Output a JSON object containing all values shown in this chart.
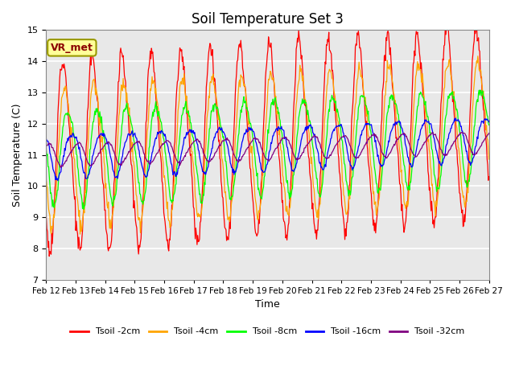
{
  "title": "Soil Temperature Set 3",
  "xlabel": "Time",
  "ylabel": "Soil Temperature (C)",
  "ylim": [
    7.0,
    15.0
  ],
  "yticks": [
    7.0,
    8.0,
    9.0,
    10.0,
    11.0,
    12.0,
    13.0,
    14.0,
    15.0
  ],
  "x_labels": [
    "Feb 12",
    "Feb 13",
    "Feb 14",
    "Feb 15",
    "Feb 16",
    "Feb 17",
    "Feb 18",
    "Feb 19",
    "Feb 20",
    "Feb 21",
    "Feb 22",
    "Feb 23",
    "Feb 24",
    "Feb 25",
    "Feb 26",
    "Feb 27"
  ],
  "series_colors": [
    "red",
    "orange",
    "lime",
    "blue",
    "purple"
  ],
  "series_labels": [
    "Tsoil -2cm",
    "Tsoil -4cm",
    "Tsoil -8cm",
    "Tsoil -16cm",
    "Tsoil -32cm"
  ],
  "annotation_text": "VR_met",
  "annotation_box_color": "#FFFF99",
  "annotation_border_color": "#999900",
  "background_color": "#E8E8E8",
  "grid_color": "white",
  "n_days": 15,
  "points_per_day": 48,
  "base_temp": 11.0,
  "trend_total": 1.0,
  "amp2": 3.0,
  "amp4": 2.2,
  "amp8": 1.5,
  "amp16": 0.7,
  "amp32": 0.35,
  "phase2": 0.0,
  "phase4": 0.06,
  "phase8": 0.15,
  "phase16": 0.28,
  "phase32": 0.45,
  "seed": 12
}
